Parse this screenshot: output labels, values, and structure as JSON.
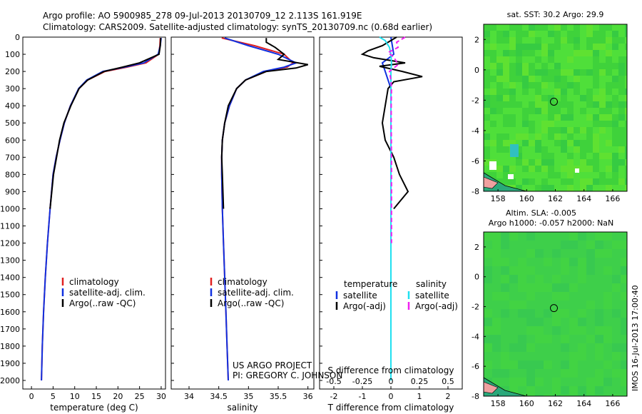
{
  "header": {
    "line1": "Argo profile: AO 5900985_278 09-Jul-2013 20130709_12 2.113S 161.919E",
    "line2": "Climatology: CARS2009. Satellite-adjusted climatology: synTS_20130709.nc (0.68d earlier)"
  },
  "footer": {
    "project": "US ARGO PROJECT",
    "pi": "PI: GREGORY C. JOHNSON",
    "stamp": "IMOS 16-Jul-2013 17:00:40"
  },
  "colors": {
    "climatology": "#e02020",
    "satellite": "#1030e0",
    "argo": "#000000",
    "salinity_sat": "#20e0f0",
    "salinity_argo": "#f020f0",
    "map_green": "#3fd63f"
  },
  "chart_data": [
    {
      "type": "line",
      "id": "temperature",
      "xlabel": "temperature (deg C)",
      "ylabel": "",
      "xlim": [
        -2,
        31
      ],
      "ylim": [
        2050,
        0
      ],
      "xticks": [
        0,
        5,
        10,
        15,
        20,
        25,
        30
      ],
      "yticks": [
        0,
        100,
        200,
        300,
        400,
        500,
        600,
        700,
        800,
        900,
        1000,
        1100,
        1200,
        1300,
        1400,
        1500,
        1600,
        1700,
        1800,
        1900,
        2000
      ],
      "legend": [
        "climatology",
        "satellite-adj. clim.",
        "Argo(..raw -QC)"
      ],
      "series": [
        {
          "name": "climatology",
          "depth": [
            5,
            50,
            100,
            150,
            175,
            200,
            250,
            300,
            400,
            500,
            600,
            700,
            800,
            1000,
            1200,
            1400,
            1600,
            1800,
            2000
          ],
          "values": [
            29.8,
            29.7,
            29.4,
            26.5,
            22,
            17,
            13,
            11,
            9,
            7.6,
            6.6,
            5.7,
            5.0,
            4.3,
            3.7,
            3.2,
            2.8,
            2.5,
            2.3
          ]
        },
        {
          "name": "satellite-adj. clim.",
          "depth": [
            5,
            50,
            100,
            150,
            175,
            200,
            250,
            300,
            400,
            500,
            600,
            700,
            800,
            1000,
            1200,
            1400,
            1600,
            1800,
            2000
          ],
          "values": [
            30.0,
            29.8,
            29.3,
            26.0,
            21.5,
            16.5,
            12.8,
            10.9,
            9,
            7.6,
            6.6,
            5.7,
            5.0,
            4.3,
            3.7,
            3.2,
            2.8,
            2.5,
            2.3
          ]
        },
        {
          "name": "Argo(..raw -QC)",
          "depth": [
            5,
            50,
            100,
            150,
            175,
            200,
            250,
            300,
            400,
            500,
            600,
            700,
            800,
            1000
          ],
          "values": [
            29.9,
            29.8,
            29.5,
            25,
            21,
            16.8,
            13,
            11,
            9.1,
            7.5,
            6.5,
            5.8,
            5.1,
            4.3
          ]
        }
      ]
    },
    {
      "type": "line",
      "id": "salinity",
      "xlabel": "salinity",
      "ylabel": "",
      "xlim": [
        33.7,
        36.1
      ],
      "ylim": [
        2050,
        0
      ],
      "xticks": [
        34,
        34.5,
        35,
        35.5,
        36
      ],
      "legend": [
        "climatology",
        "satellite-adj. clim.",
        "Argo(..raw -QC)"
      ],
      "series": [
        {
          "name": "climatology",
          "depth": [
            5,
            50,
            100,
            150,
            175,
            200,
            250,
            300,
            400,
            500,
            600,
            700,
            800,
            1000,
            1200,
            1400,
            1600,
            1800,
            2000
          ],
          "values": [
            34.55,
            35.1,
            35.6,
            35.75,
            35.65,
            35.3,
            34.95,
            34.8,
            34.68,
            34.6,
            34.56,
            34.55,
            34.55,
            34.56,
            34.58,
            34.6,
            34.62,
            34.64,
            34.66
          ]
        },
        {
          "name": "satellite-adj. clim.",
          "depth": [
            5,
            50,
            100,
            150,
            175,
            200,
            250,
            300,
            400,
            500,
            600,
            700,
            800,
            1000,
            1200,
            1400,
            1600,
            1800,
            2000
          ],
          "values": [
            34.6,
            35.0,
            35.5,
            35.8,
            35.6,
            35.25,
            34.95,
            34.8,
            34.68,
            34.6,
            34.56,
            34.55,
            34.55,
            34.56,
            34.58,
            34.6,
            34.62,
            34.64,
            34.66
          ]
        },
        {
          "name": "Argo(..raw -QC)",
          "depth": [
            5,
            30,
            60,
            100,
            130,
            160,
            180,
            200,
            250,
            300,
            400,
            500,
            600,
            700,
            800,
            1000
          ],
          "values": [
            35.3,
            35.3,
            35.45,
            35.6,
            35.5,
            36.0,
            35.8,
            35.3,
            34.95,
            34.8,
            34.66,
            34.6,
            34.56,
            34.55,
            34.56,
            34.58
          ]
        }
      ]
    },
    {
      "type": "line",
      "id": "differences",
      "xlabel": "T difference from climatology",
      "xlabel_top": "S difference from climatology",
      "xlim": [
        -2.5,
        2.5
      ],
      "ylim": [
        2050,
        0
      ],
      "xticks": [
        -2,
        -1,
        0,
        1,
        2
      ],
      "xticks_top": [
        -0.5,
        -0.25,
        0,
        0.25,
        0.5
      ],
      "legend_title_t": "temperature",
      "legend_title_s": "salinity",
      "legend": [
        "satellite",
        "Argo(-adj)",
        "satellite",
        "Argo(-adj)"
      ],
      "series": [
        {
          "name": "T satellite",
          "depth": [
            0,
            100,
            150,
            200,
            300,
            500,
            1000,
            2000
          ],
          "values": [
            0,
            0.1,
            -0.3,
            -0.2,
            0,
            0,
            0,
            0
          ]
        },
        {
          "name": "T Argo(-adj)",
          "depth": [
            0,
            50,
            80,
            100,
            120,
            150,
            170,
            200,
            230,
            260,
            300,
            400,
            500,
            600,
            700,
            800,
            900,
            1000
          ],
          "values": [
            0.2,
            -0.3,
            -0.8,
            -1.0,
            -0.6,
            0.5,
            -0.4,
            0.4,
            1.1,
            0.1,
            -0.1,
            -0.2,
            -0.3,
            -0.2,
            0.1,
            0.3,
            0.6,
            0.1
          ]
        },
        {
          "name": "S satellite",
          "depth": [
            0,
            20,
            60,
            100,
            150,
            200,
            300,
            500,
            1000,
            2000
          ],
          "values": [
            -0.4,
            -0.2,
            -0.05,
            0,
            0.02,
            0,
            0,
            0,
            0,
            0
          ]
        },
        {
          "name": "S Argo(-adj)",
          "depth": [
            0,
            30,
            60,
            90,
            110,
            130,
            160,
            200,
            250,
            300,
            400,
            500,
            700,
            900,
            1000,
            1200
          ],
          "values": [
            0.5,
            0.2,
            0.25,
            -0.1,
            0.05,
            0.15,
            0.25,
            -0.05,
            0.0,
            0.02,
            0.01,
            0.01,
            0.02,
            0.02,
            0.02,
            0.02
          ]
        }
      ]
    },
    {
      "type": "heatmap",
      "id": "sst-map",
      "title": "sat. SST: 30.2  Argo: 29.9",
      "xlim": [
        157,
        167
      ],
      "ylim": [
        -8,
        3
      ],
      "xticks": [
        158,
        160,
        162,
        164,
        166
      ],
      "yticks": [
        -8,
        -6,
        -4,
        -2,
        0,
        2
      ],
      "marker": {
        "lon": 161.9,
        "lat": -2.1
      }
    },
    {
      "type": "heatmap",
      "id": "sla-map",
      "title": "Altim. SLA: -0.005",
      "subtitle": "Argo h1000: -0.057 h2000: NaN",
      "xlim": [
        157,
        167
      ],
      "ylim": [
        -8,
        3
      ],
      "xticks": [
        158,
        160,
        162,
        164,
        166
      ],
      "yticks": [
        -8,
        -6,
        -4,
        -2,
        0,
        2
      ],
      "marker": {
        "lon": 161.9,
        "lat": -2.1
      }
    }
  ]
}
